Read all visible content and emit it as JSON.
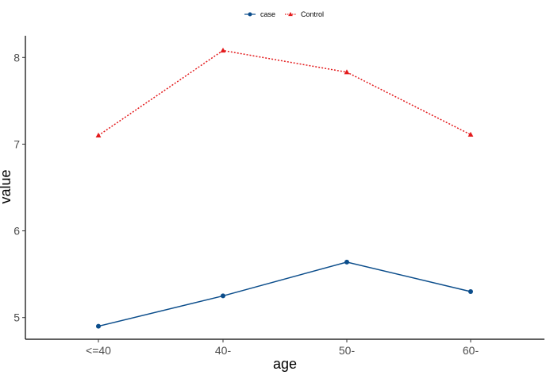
{
  "chart_data": {
    "type": "line",
    "xlabel": "age",
    "ylabel": "value",
    "categories": [
      "<=40",
      "40-",
      "50-",
      "60-"
    ],
    "ylim": [
      4.75,
      8.25
    ],
    "yticks": [
      5,
      6,
      7,
      8
    ],
    "grid": false,
    "legend_position": "top-center",
    "series": [
      {
        "name": "case",
        "values": [
          4.9,
          5.25,
          5.64,
          5.3
        ],
        "color": "#0b4d8b",
        "line_style": "solid",
        "marker": "circle"
      },
      {
        "name": "Control",
        "values": [
          7.1,
          8.08,
          7.83,
          7.11
        ],
        "color": "#e31a1c",
        "line_style": "dotted",
        "marker": "triangle"
      }
    ]
  }
}
